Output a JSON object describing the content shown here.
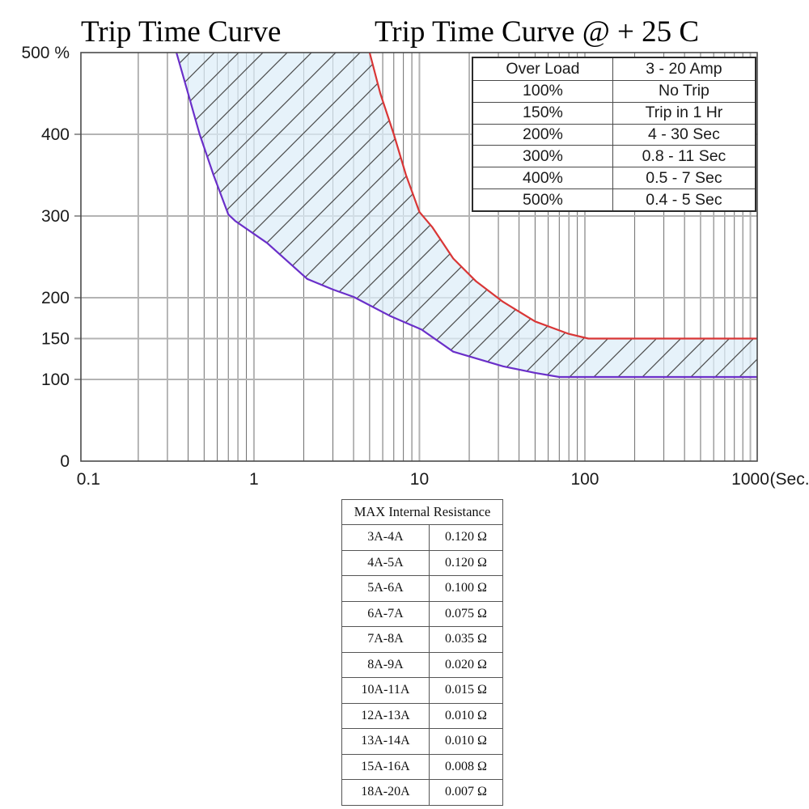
{
  "titles": {
    "left": "Trip Time Curve",
    "right": "Trip Time Curve @ + 25 C"
  },
  "chart_data": {
    "type": "area",
    "title": "Trip Time Curve @ + 25 C",
    "x_axis": {
      "scale": "log",
      "range": [
        0.09,
        1100
      ],
      "ticks": [
        {
          "label": "0.1",
          "value": 0.1
        },
        {
          "label": "1",
          "value": 1
        },
        {
          "label": "10",
          "value": 10
        },
        {
          "label": "100",
          "value": 100
        },
        {
          "label": "1000",
          "value": 1000
        }
      ],
      "unit_label": "(Sec.)",
      "grid": true
    },
    "y_axis": {
      "scale": "linear",
      "range": [
        0,
        500
      ],
      "unit": "% overload",
      "ticks": [
        {
          "label": "500 %",
          "value": 500
        },
        {
          "label": "400",
          "value": 400
        },
        {
          "label": "300",
          "value": 300
        },
        {
          "label": "200",
          "value": 200
        },
        {
          "label": "150",
          "value": 150
        },
        {
          "label": "100",
          "value": 100
        },
        {
          "label": "0",
          "value": 0
        }
      ],
      "grid_values": [
        100,
        150,
        200,
        300,
        400
      ]
    },
    "series": [
      {
        "name": "min-trip-curve",
        "color": "#6a2fc9",
        "points": [
          [
            0.34,
            500
          ],
          [
            0.4,
            450
          ],
          [
            0.47,
            400
          ],
          [
            0.57,
            350
          ],
          [
            0.7,
            302
          ],
          [
            0.77,
            294
          ],
          [
            1.2,
            267
          ],
          [
            2.1,
            223
          ],
          [
            3,
            210
          ],
          [
            4,
            201
          ],
          [
            6.6,
            178
          ],
          [
            10.3,
            161
          ],
          [
            16,
            134
          ],
          [
            32,
            116
          ],
          [
            50,
            108
          ],
          [
            70,
            103
          ],
          [
            1100,
            103
          ]
        ]
      },
      {
        "name": "max-trip-curve",
        "color": "#d93636",
        "points": [
          [
            5,
            500
          ],
          [
            5.8,
            450
          ],
          [
            7,
            400
          ],
          [
            8.3,
            350
          ],
          [
            10,
            305
          ],
          [
            12,
            286
          ],
          [
            16,
            248
          ],
          [
            22,
            220
          ],
          [
            32,
            195
          ],
          [
            50,
            171
          ],
          [
            79,
            156
          ],
          [
            105,
            150
          ],
          [
            1100,
            150
          ]
        ]
      }
    ],
    "band": {
      "fill": "#dcedf8",
      "fill_opacity": 0.72,
      "hatch_color": "#4a4a4a",
      "hatch_direction": "forward-slash"
    },
    "colors": {
      "grid_minor": "#6e6e6e",
      "grid_major": "#b3b3b3",
      "frame": "#4a4a4a"
    }
  },
  "overlay_table": {
    "rows": [
      [
        "Over Load",
        "3 - 20 Amp"
      ],
      [
        "100%",
        "No Trip"
      ],
      [
        "150%",
        "Trip in 1 Hr"
      ],
      [
        "200%",
        "4 - 30 Sec"
      ],
      [
        "300%",
        "0.8 - 11 Sec"
      ],
      [
        "400%",
        "0.5 - 7 Sec"
      ],
      [
        "500%",
        "0.4 - 5 Sec"
      ]
    ]
  },
  "resistance_table": {
    "header": "MAX Internal Resistance",
    "rows": [
      [
        "3A-4A",
        "0.120 Ω"
      ],
      [
        "4A-5A",
        "0.120 Ω"
      ],
      [
        "5A-6A",
        "0.100 Ω"
      ],
      [
        "6A-7A",
        "0.075 Ω"
      ],
      [
        "7A-8A",
        "0.035 Ω"
      ],
      [
        "8A-9A",
        "0.020 Ω"
      ],
      [
        "10A-11A",
        "0.015 Ω"
      ],
      [
        "12A-13A",
        "0.010 Ω"
      ],
      [
        "13A-14A",
        "0.010 Ω"
      ],
      [
        "15A-16A",
        "0.008 Ω"
      ],
      [
        "18A-20A",
        "0.007 Ω"
      ]
    ]
  }
}
